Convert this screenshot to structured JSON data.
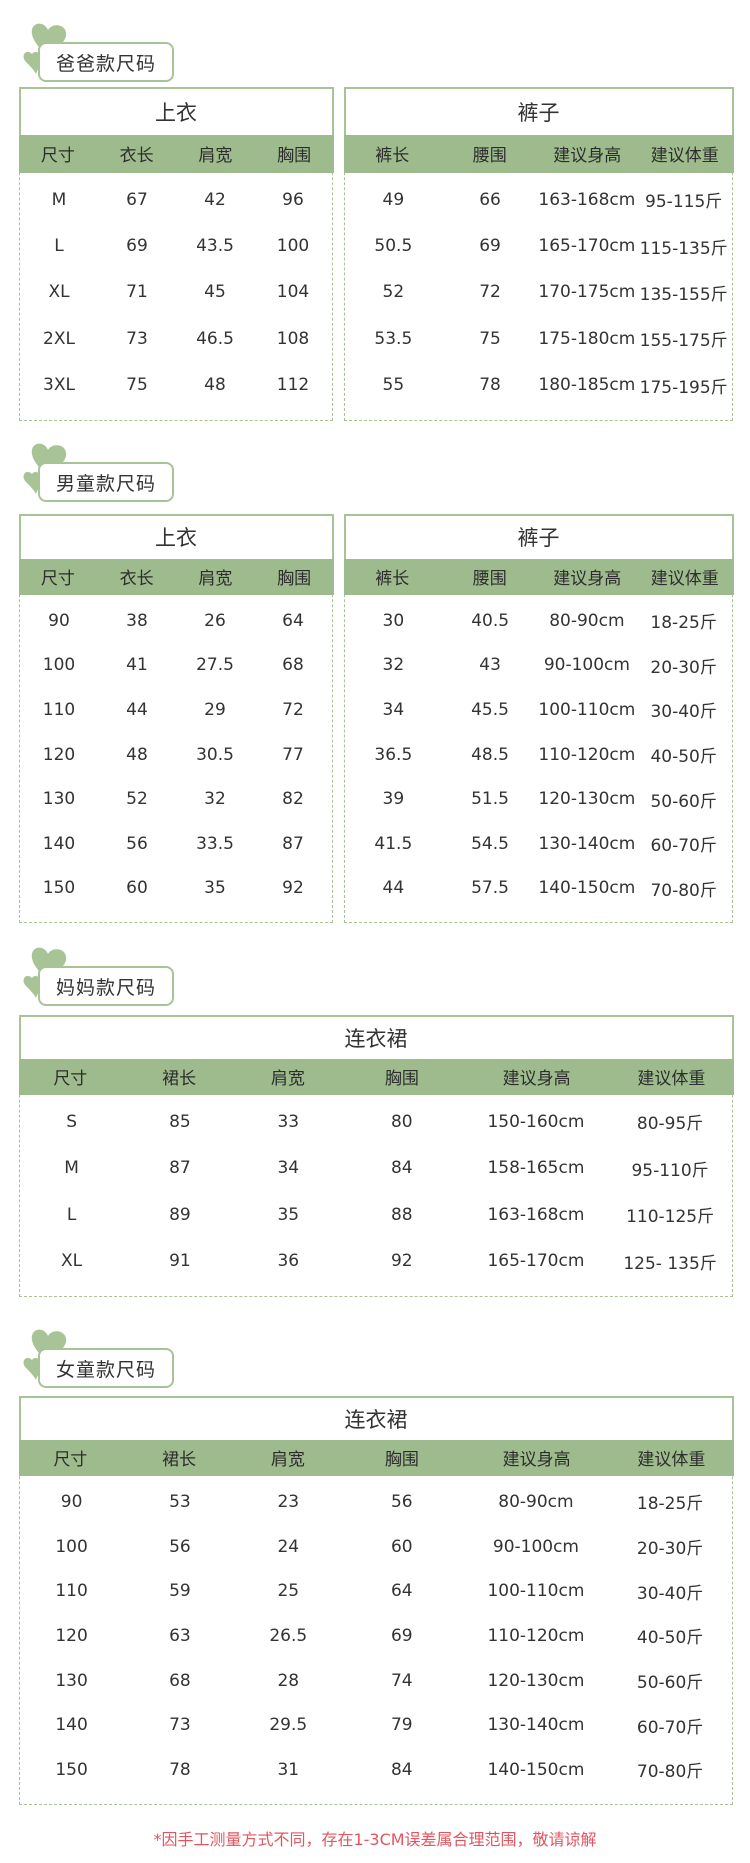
{
  "colors": {
    "accent": "#9dbb8c",
    "border": "#a8c497",
    "note": "#e2555f"
  },
  "sections": [
    {
      "label": "爸爸款尺码",
      "tables": [
        {
          "title": "上衣",
          "headers": [
            "尺寸",
            "衣长",
            "肩宽",
            "胸围"
          ],
          "rows": [
            [
              "M",
              "67",
              "42",
              "96"
            ],
            [
              "L",
              "69",
              "43.5",
              "100"
            ],
            [
              "XL",
              "71",
              "45",
              "104"
            ],
            [
              "2XL",
              "73",
              "46.5",
              "108"
            ],
            [
              "3XL",
              "75",
              "48",
              "112"
            ]
          ]
        },
        {
          "title": "裤子",
          "headers": [
            "裤长",
            "腰围",
            "建议身高",
            "建议体重"
          ],
          "rows": [
            [
              "49",
              "66",
              "163-168cm",
              "95-115斤"
            ],
            [
              "50.5",
              "69",
              "165-170cm",
              "115-135斤"
            ],
            [
              "52",
              "72",
              "170-175cm",
              "135-155斤"
            ],
            [
              "53.5",
              "75",
              "175-180cm",
              "155-175斤"
            ],
            [
              "55",
              "78",
              "180-185cm",
              "175-195斤"
            ]
          ]
        }
      ]
    },
    {
      "label": "男童款尺码",
      "tables": [
        {
          "title": "上衣",
          "headers": [
            "尺寸",
            "衣长",
            "肩宽",
            "胸围"
          ],
          "rows": [
            [
              "90",
              "38",
              "26",
              "64"
            ],
            [
              "100",
              "41",
              "27.5",
              "68"
            ],
            [
              "110",
              "44",
              "29",
              "72"
            ],
            [
              "120",
              "48",
              "30.5",
              "77"
            ],
            [
              "130",
              "52",
              "32",
              "82"
            ],
            [
              "140",
              "56",
              "33.5",
              "87"
            ],
            [
              "150",
              "60",
              "35",
              "92"
            ]
          ]
        },
        {
          "title": "裤子",
          "headers": [
            "裤长",
            "腰围",
            "建议身高",
            "建议体重"
          ],
          "rows": [
            [
              "30",
              "40.5",
              "80-90cm",
              "18-25斤"
            ],
            [
              "32",
              "43",
              "90-100cm",
              "20-30斤"
            ],
            [
              "34",
              "45.5",
              "100-110cm",
              "30-40斤"
            ],
            [
              "36.5",
              "48.5",
              "110-120cm",
              "40-50斤"
            ],
            [
              "39",
              "51.5",
              "120-130cm",
              "50-60斤"
            ],
            [
              "41.5",
              "54.5",
              "130-140cm",
              "60-70斤"
            ],
            [
              "44",
              "57.5",
              "140-150cm",
              "70-80斤"
            ]
          ]
        }
      ]
    },
    {
      "label": "妈妈款尺码",
      "tables": [
        {
          "title": "连衣裙",
          "headers": [
            "尺寸",
            "裙长",
            "肩宽",
            "胸围",
            "建议身高",
            "建议体重"
          ],
          "rows": [
            [
              "S",
              "85",
              "33",
              "80",
              "150-160cm",
              "80-95斤"
            ],
            [
              "M",
              "87",
              "34",
              "84",
              "158-165cm",
              "95-110斤"
            ],
            [
              "L",
              "89",
              "35",
              "88",
              "163-168cm",
              "110-125斤"
            ],
            [
              "XL",
              "91",
              "36",
              "92",
              "165-170cm",
              "125- 135斤"
            ]
          ]
        }
      ]
    },
    {
      "label": "女童款尺码",
      "tables": [
        {
          "title": "连衣裙",
          "headers": [
            "尺寸",
            "裙长",
            "肩宽",
            "胸围",
            "建议身高",
            "建议体重"
          ],
          "rows": [
            [
              "90",
              "53",
              "23",
              "56",
              "80-90cm",
              "18-25斤"
            ],
            [
              "100",
              "56",
              "24",
              "60",
              "90-100cm",
              "20-30斤"
            ],
            [
              "110",
              "59",
              "25",
              "64",
              "100-110cm",
              "30-40斤"
            ],
            [
              "120",
              "63",
              "26.5",
              "69",
              "110-120cm",
              "40-50斤"
            ],
            [
              "130",
              "68",
              "28",
              "74",
              "120-130cm",
              "50-60斤"
            ],
            [
              "140",
              "73",
              "29.5",
              "79",
              "130-140cm",
              "60-70斤"
            ],
            [
              "150",
              "78",
              "31",
              "84",
              "140-150cm",
              "70-80斤"
            ]
          ]
        }
      ]
    }
  ],
  "footnote": "*因手工测量方式不同，存在1-3CM误差属合理范围，敬请谅解"
}
